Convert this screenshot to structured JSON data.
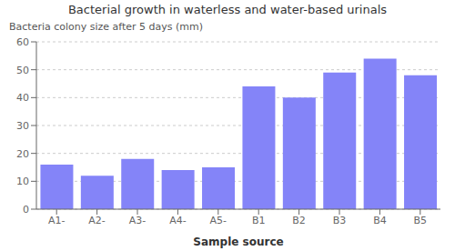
{
  "chart_data": {
    "type": "bar",
    "title": "Bacterial growth in waterless and water-based urinals",
    "ylabel": "Bacteria colony size after 5 days (mm)",
    "xlabel": "Sample source",
    "categories": [
      "A1-",
      "A2-",
      "A3-",
      "A4-",
      "A5-",
      "B1",
      "B2",
      "B3",
      "B4",
      "B5"
    ],
    "values": [
      16,
      12,
      18,
      14,
      15,
      44,
      40,
      49,
      54,
      48
    ],
    "color": "#8484f8",
    "ylim": [
      0,
      60
    ],
    "yticks": [
      0,
      10,
      20,
      30,
      40,
      50,
      60
    ],
    "grid": true
  }
}
